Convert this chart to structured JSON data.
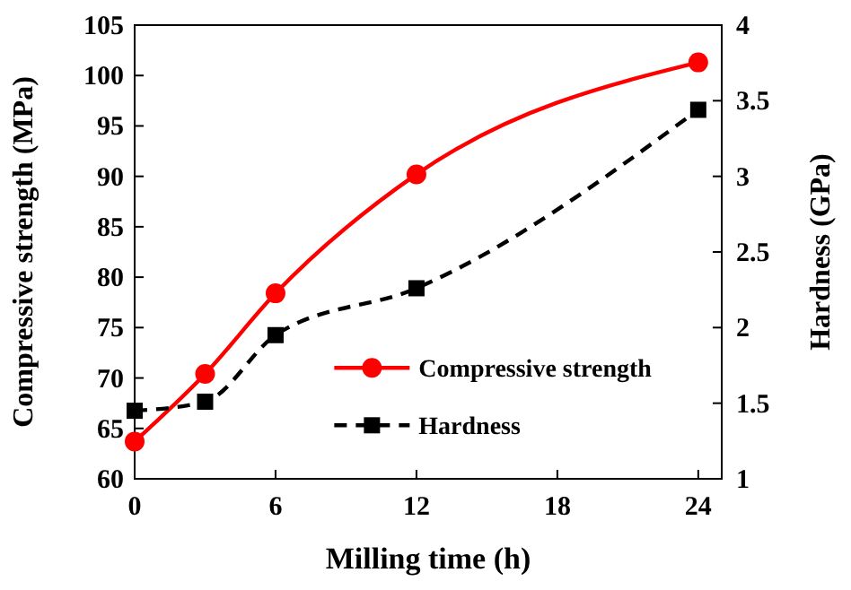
{
  "chart_data": {
    "type": "line",
    "xlabel": "Milling time (h)",
    "ylabel": "Compressive strength (MPa)",
    "y2label": "Hardness (GPa)",
    "x": [
      0,
      3,
      6,
      12,
      24
    ],
    "series": [
      {
        "name": "Compressive strength",
        "color": "#ff0000",
        "values": [
          63.7,
          70.4,
          78.4,
          90.2,
          101.3
        ],
        "marker": "circle",
        "line_style": "solid"
      },
      {
        "name": "Hardness",
        "color": "#000000",
        "values": [
          1.45,
          1.51,
          1.95,
          2.26,
          3.44
        ],
        "axis": "y2",
        "marker": "square",
        "line_style": "dashed"
      }
    ],
    "xlim": [
      0,
      25
    ],
    "xticks": [
      0,
      6,
      12,
      18,
      24
    ],
    "ylim": [
      60,
      105
    ],
    "yticks": [
      60,
      65,
      70,
      75,
      80,
      85,
      90,
      95,
      100,
      105
    ],
    "y2lim": [
      1,
      4
    ],
    "y2ticks": [
      1,
      1.5,
      2,
      2.5,
      3,
      3.5,
      4
    ],
    "legend": "bottom right",
    "grid": false
  }
}
